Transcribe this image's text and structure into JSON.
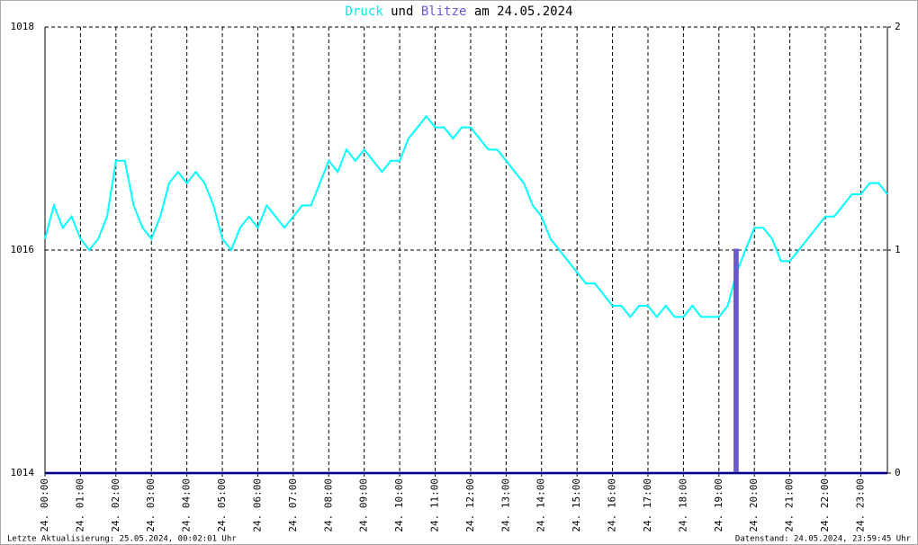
{
  "chart_data": {
    "type": "line",
    "title_parts": [
      "Druck",
      "und",
      "Blitze",
      "am 24.05.2024"
    ],
    "footer_left": "Letzte Aktualisierung: 25.05.2024, 00:02:01 Uhr",
    "footer_right": "Datenstand: 24.05.2024, 23:59:45 Uhr",
    "xlim": [
      0,
      23.75
    ],
    "xticks": [
      {
        "value": 0,
        "label": "24. 00:00"
      },
      {
        "value": 1,
        "label": "24. 01:00"
      },
      {
        "value": 2,
        "label": "24. 02:00"
      },
      {
        "value": 3,
        "label": "24. 03:00"
      },
      {
        "value": 4,
        "label": "24. 04:00"
      },
      {
        "value": 5,
        "label": "24. 05:00"
      },
      {
        "value": 6,
        "label": "24. 06:00"
      },
      {
        "value": 7,
        "label": "24. 07:00"
      },
      {
        "value": 8,
        "label": "24. 08:00"
      },
      {
        "value": 9,
        "label": "24. 09:00"
      },
      {
        "value": 10,
        "label": "24. 10:00"
      },
      {
        "value": 11,
        "label": "24. 11:00"
      },
      {
        "value": 12,
        "label": "24. 12:00"
      },
      {
        "value": 13,
        "label": "24. 13:00"
      },
      {
        "value": 14,
        "label": "24. 14:00"
      },
      {
        "value": 15,
        "label": "24. 15:00"
      },
      {
        "value": 16,
        "label": "24. 16:00"
      },
      {
        "value": 17,
        "label": "24. 17:00"
      },
      {
        "value": 18,
        "label": "24. 18:00"
      },
      {
        "value": 19,
        "label": "24. 19:00"
      },
      {
        "value": 20,
        "label": "24. 20:00"
      },
      {
        "value": 21,
        "label": "24. 21:00"
      },
      {
        "value": 22,
        "label": "24. 22:00"
      },
      {
        "value": 23,
        "label": "24. 23:00"
      }
    ],
    "ylim": [
      1014,
      1018
    ],
    "yticks": [
      1014,
      1016,
      1018
    ],
    "y2lim": [
      0,
      2
    ],
    "y2ticks": [
      0,
      1,
      2
    ],
    "grid": true,
    "series": [
      {
        "name": "Druck",
        "color": "#00ffff",
        "x": [
          0,
          0.25,
          0.5,
          0.75,
          1,
          1.25,
          1.5,
          1.75,
          2,
          2.25,
          2.5,
          2.75,
          3,
          3.25,
          3.5,
          3.75,
          4,
          4.25,
          4.5,
          4.75,
          5,
          5.25,
          5.5,
          5.75,
          6,
          6.25,
          6.5,
          6.75,
          7,
          7.25,
          7.5,
          7.75,
          8,
          8.25,
          8.5,
          8.75,
          9,
          9.25,
          9.5,
          9.75,
          10,
          10.25,
          10.5,
          10.75,
          11,
          11.25,
          11.5,
          11.75,
          12,
          12.25,
          12.5,
          12.75,
          13,
          13.25,
          13.5,
          13.75,
          14,
          14.25,
          14.5,
          14.75,
          15,
          15.25,
          15.5,
          15.75,
          16,
          16.25,
          16.5,
          16.75,
          17,
          17.25,
          17.5,
          17.75,
          18,
          18.25,
          18.5,
          18.75,
          19,
          19.25,
          19.5,
          19.75,
          20,
          20.25,
          20.5,
          20.75,
          21,
          21.25,
          21.5,
          21.75,
          22,
          22.25,
          22.5,
          22.75,
          23,
          23.25,
          23.5,
          23.75
        ],
        "values": [
          1016.1,
          1016.4,
          1016.2,
          1016.3,
          1016.1,
          1016.0,
          1016.1,
          1016.3,
          1016.8,
          1016.8,
          1016.4,
          1016.2,
          1016.1,
          1016.3,
          1016.6,
          1016.7,
          1016.6,
          1016.7,
          1016.6,
          1016.4,
          1016.1,
          1016.0,
          1016.2,
          1016.3,
          1016.2,
          1016.4,
          1016.3,
          1016.2,
          1016.3,
          1016.4,
          1016.4,
          1016.6,
          1016.8,
          1016.7,
          1016.9,
          1016.8,
          1016.9,
          1016.8,
          1016.7,
          1016.8,
          1016.8,
          1017.0,
          1017.1,
          1017.2,
          1017.1,
          1017.1,
          1017.0,
          1017.1,
          1017.1,
          1017.0,
          1016.9,
          1016.9,
          1016.8,
          1016.7,
          1016.6,
          1016.4,
          1016.3,
          1016.1,
          1016.0,
          1015.9,
          1015.8,
          1015.7,
          1015.7,
          1015.6,
          1015.5,
          1015.5,
          1015.4,
          1015.5,
          1015.5,
          1015.4,
          1015.5,
          1015.4,
          1015.4,
          1015.5,
          1015.4,
          1015.4,
          1015.4,
          1015.5,
          1015.8,
          1016.0,
          1016.2,
          1016.2,
          1016.1,
          1015.9,
          1015.9,
          1016.0,
          1016.1,
          1016.2,
          1016.3,
          1016.3,
          1016.4,
          1016.5,
          1016.5,
          1016.6,
          1016.6,
          1016.5
        ]
      },
      {
        "name": "Blitze",
        "color": "#6a5acd",
        "axis": "y2",
        "x": [
          0,
          19.45,
          19.45,
          19.52,
          19.52,
          23.75
        ],
        "values": [
          0,
          0,
          1,
          1,
          0,
          0
        ]
      }
    ]
  }
}
